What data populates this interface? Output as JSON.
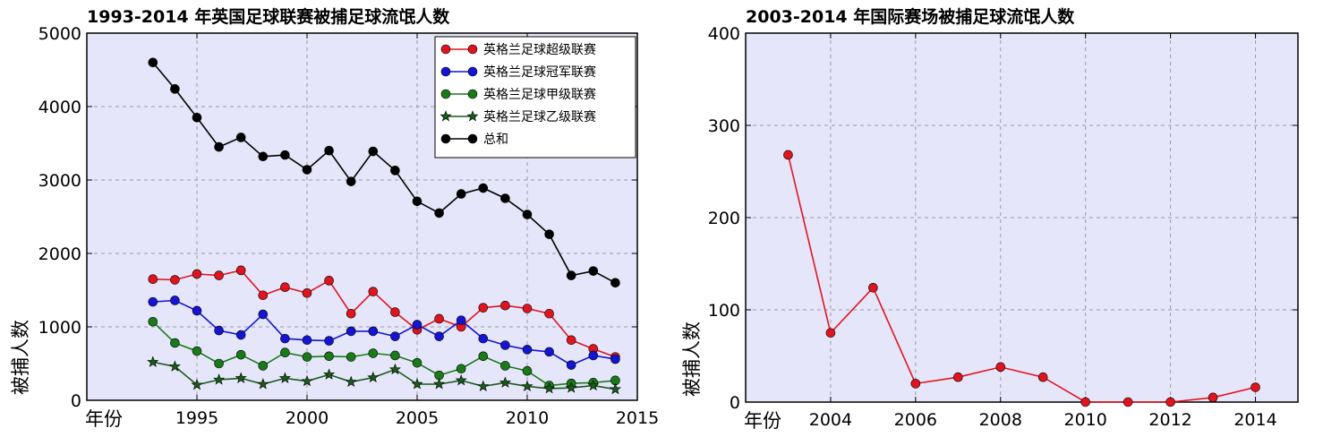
{
  "chart_data": [
    {
      "type": "line",
      "title": "1993-2014 年英国足球联赛被捕足球流氓人数",
      "xlabel": "年份",
      "ylabel": "被捕人数",
      "xlim": [
        1990,
        2015
      ],
      "ylim": [
        0,
        5000
      ],
      "xticks": [
        1995,
        2000,
        2005,
        2010,
        2015
      ],
      "yticks": [
        0,
        1000,
        2000,
        3000,
        4000,
        5000
      ],
      "grid": true,
      "legend_position": "top-right",
      "x": [
        1993,
        1994,
        1995,
        1996,
        1997,
        1998,
        1999,
        2000,
        2001,
        2002,
        2003,
        2004,
        2005,
        2006,
        2007,
        2008,
        2009,
        2010,
        2011,
        2012,
        2013,
        2014
      ],
      "series": [
        {
          "name": "英格兰足球超级联赛",
          "color": "#e0141e",
          "marker": "circle",
          "values": [
            1650,
            1640,
            1720,
            1700,
            1770,
            1430,
            1540,
            1460,
            1630,
            1180,
            1480,
            1200,
            960,
            1110,
            1000,
            1260,
            1290,
            1250,
            1180,
            820,
            700,
            590
          ]
        },
        {
          "name": "英格兰足球冠军联赛",
          "color": "#1414d2",
          "marker": "circle",
          "values": [
            1340,
            1360,
            1220,
            950,
            890,
            1170,
            840,
            820,
            810,
            940,
            940,
            870,
            1030,
            870,
            1090,
            840,
            750,
            690,
            660,
            480,
            610,
            560
          ]
        },
        {
          "name": "英格兰足球甲级联赛",
          "color": "#1a7a1a",
          "marker": "circle",
          "values": [
            1070,
            780,
            670,
            500,
            620,
            470,
            650,
            590,
            600,
            590,
            640,
            610,
            510,
            340,
            430,
            600,
            470,
            400,
            200,
            230,
            240,
            270
          ]
        },
        {
          "name": "英格兰足球乙级联赛",
          "color": "#1a5a1a",
          "marker": "star",
          "values": [
            520,
            460,
            210,
            280,
            300,
            220,
            300,
            260,
            350,
            250,
            310,
            420,
            220,
            220,
            270,
            190,
            240,
            190,
            160,
            170,
            200,
            150
          ]
        },
        {
          "name": "总和",
          "color": "#000000",
          "marker": "circle",
          "values": [
            4600,
            4240,
            3850,
            3450,
            3580,
            3320,
            3340,
            3140,
            3400,
            2980,
            3390,
            3130,
            2710,
            2550,
            2810,
            2890,
            2750,
            2530,
            2260,
            1700,
            1760,
            1600
          ]
        }
      ]
    },
    {
      "type": "line",
      "title": "2003-2014 年国际赛场被捕足球流氓人数",
      "xlabel": "年份",
      "ylabel": "被捕人数",
      "xlim": [
        2002,
        2015
      ],
      "ylim": [
        0,
        400
      ],
      "xticks": [
        2004,
        2006,
        2008,
        2010,
        2012,
        2014
      ],
      "yticks": [
        0,
        100,
        200,
        300,
        400
      ],
      "grid": true,
      "x": [
        2003,
        2004,
        2005,
        2006,
        2007,
        2008,
        2009,
        2010,
        2011,
        2012,
        2013,
        2014
      ],
      "series": [
        {
          "name": "",
          "color": "#e0141e",
          "marker": "circle",
          "values": [
            268,
            75,
            124,
            20,
            27,
            38,
            27,
            0,
            0,
            0,
            5,
            16
          ]
        }
      ]
    }
  ]
}
